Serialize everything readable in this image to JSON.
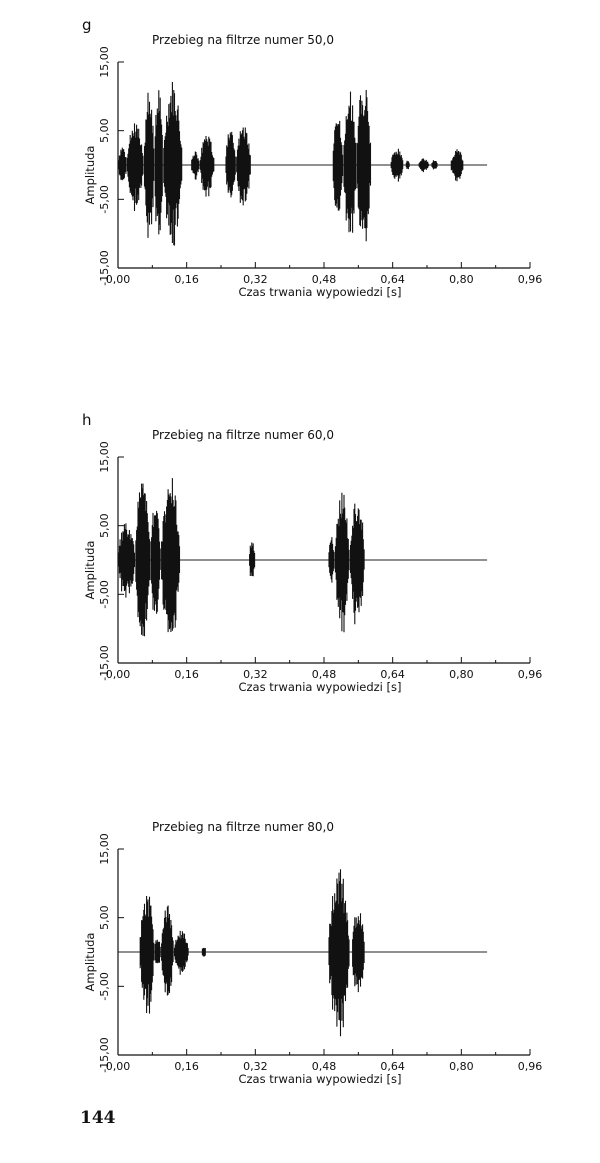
{
  "page_number": "144",
  "chart_data": [
    {
      "type": "line",
      "panel_label": "g",
      "title": "Przebieg na filtrze numer 50,0",
      "xlabel": "Czas trwania wypowiedzi [s]",
      "ylabel": "Amplituda",
      "xlim": [
        0,
        0.96
      ],
      "ylim": [
        -15,
        15
      ],
      "x_ticks": [
        "0,00",
        "0,16",
        "0,32",
        "0,48",
        "0,64",
        "0,80",
        "0,96"
      ],
      "y_ticks": [
        "15,00",
        "5,00",
        "-5,00",
        "-15,00"
      ],
      "signal_end": 0.86,
      "bursts": [
        {
          "start": 0.0,
          "end": 0.02,
          "peak": 3.0
        },
        {
          "start": 0.02,
          "end": 0.06,
          "peak": 6.5
        },
        {
          "start": 0.06,
          "end": 0.085,
          "peak": 11.0
        },
        {
          "start": 0.085,
          "end": 0.105,
          "peak": 13.0
        },
        {
          "start": 0.105,
          "end": 0.15,
          "peak": 12.5
        },
        {
          "start": 0.17,
          "end": 0.19,
          "peak": 2.0
        },
        {
          "start": 0.19,
          "end": 0.225,
          "peak": 4.5
        },
        {
          "start": 0.25,
          "end": 0.275,
          "peak": 5.5
        },
        {
          "start": 0.275,
          "end": 0.31,
          "peak": 6.0
        },
        {
          "start": 0.5,
          "end": 0.525,
          "peak": 7.5
        },
        {
          "start": 0.525,
          "end": 0.555,
          "peak": 11.0
        },
        {
          "start": 0.555,
          "end": 0.59,
          "peak": 12.5
        },
        {
          "start": 0.635,
          "end": 0.665,
          "peak": 2.5
        },
        {
          "start": 0.67,
          "end": 0.68,
          "peak": 0.8
        },
        {
          "start": 0.7,
          "end": 0.725,
          "peak": 1.0
        },
        {
          "start": 0.73,
          "end": 0.745,
          "peak": 0.8
        },
        {
          "start": 0.775,
          "end": 0.805,
          "peak": 2.5
        }
      ]
    },
    {
      "type": "line",
      "panel_label": "h",
      "title": "Przebieg na filtrze numer 60,0",
      "xlabel": "Czas trwania wypowiedzi [s]",
      "ylabel": "Amplituda",
      "xlim": [
        0,
        0.96
      ],
      "ylim": [
        -15,
        15
      ],
      "x_ticks": [
        "0,00",
        "0,16",
        "0,32",
        "0,48",
        "0,64",
        "0,80",
        "0,96"
      ],
      "y_ticks": [
        "15,00",
        "5,00",
        "-5,00",
        "-15,00"
      ],
      "signal_end": 0.86,
      "bursts": [
        {
          "start": 0.0,
          "end": 0.04,
          "peak": 6.0
        },
        {
          "start": 0.04,
          "end": 0.075,
          "peak": 13.0
        },
        {
          "start": 0.075,
          "end": 0.1,
          "peak": 9.0
        },
        {
          "start": 0.1,
          "end": 0.145,
          "peak": 12.5
        },
        {
          "start": 0.305,
          "end": 0.32,
          "peak": 3.0
        },
        {
          "start": 0.49,
          "end": 0.505,
          "peak": 3.5
        },
        {
          "start": 0.505,
          "end": 0.54,
          "peak": 10.0
        },
        {
          "start": 0.54,
          "end": 0.575,
          "peak": 10.0
        }
      ]
    },
    {
      "type": "line",
      "panel_label": "",
      "title": "Przebieg na filtrze numer 80,0",
      "xlabel": "Czas trwania wypowiedzi [s]",
      "ylabel": "Amplituda",
      "xlim": [
        0,
        0.96
      ],
      "ylim": [
        -15,
        15
      ],
      "x_ticks": [
        "0,00",
        "0,16",
        "0,32",
        "0,48",
        "0,64",
        "0,80",
        "0,96"
      ],
      "y_ticks": [
        "15,00",
        "5,00",
        "-5,00",
        "-15,00"
      ],
      "signal_end": 0.86,
      "bursts": [
        {
          "start": 0.05,
          "end": 0.085,
          "peak": 9.0
        },
        {
          "start": 0.085,
          "end": 0.1,
          "peak": 2.5
        },
        {
          "start": 0.1,
          "end": 0.13,
          "peak": 7.0
        },
        {
          "start": 0.13,
          "end": 0.165,
          "peak": 3.5
        },
        {
          "start": 0.195,
          "end": 0.205,
          "peak": 1.0
        },
        {
          "start": 0.49,
          "end": 0.54,
          "peak": 12.5
        },
        {
          "start": 0.545,
          "end": 0.575,
          "peak": 7.0
        }
      ]
    }
  ]
}
